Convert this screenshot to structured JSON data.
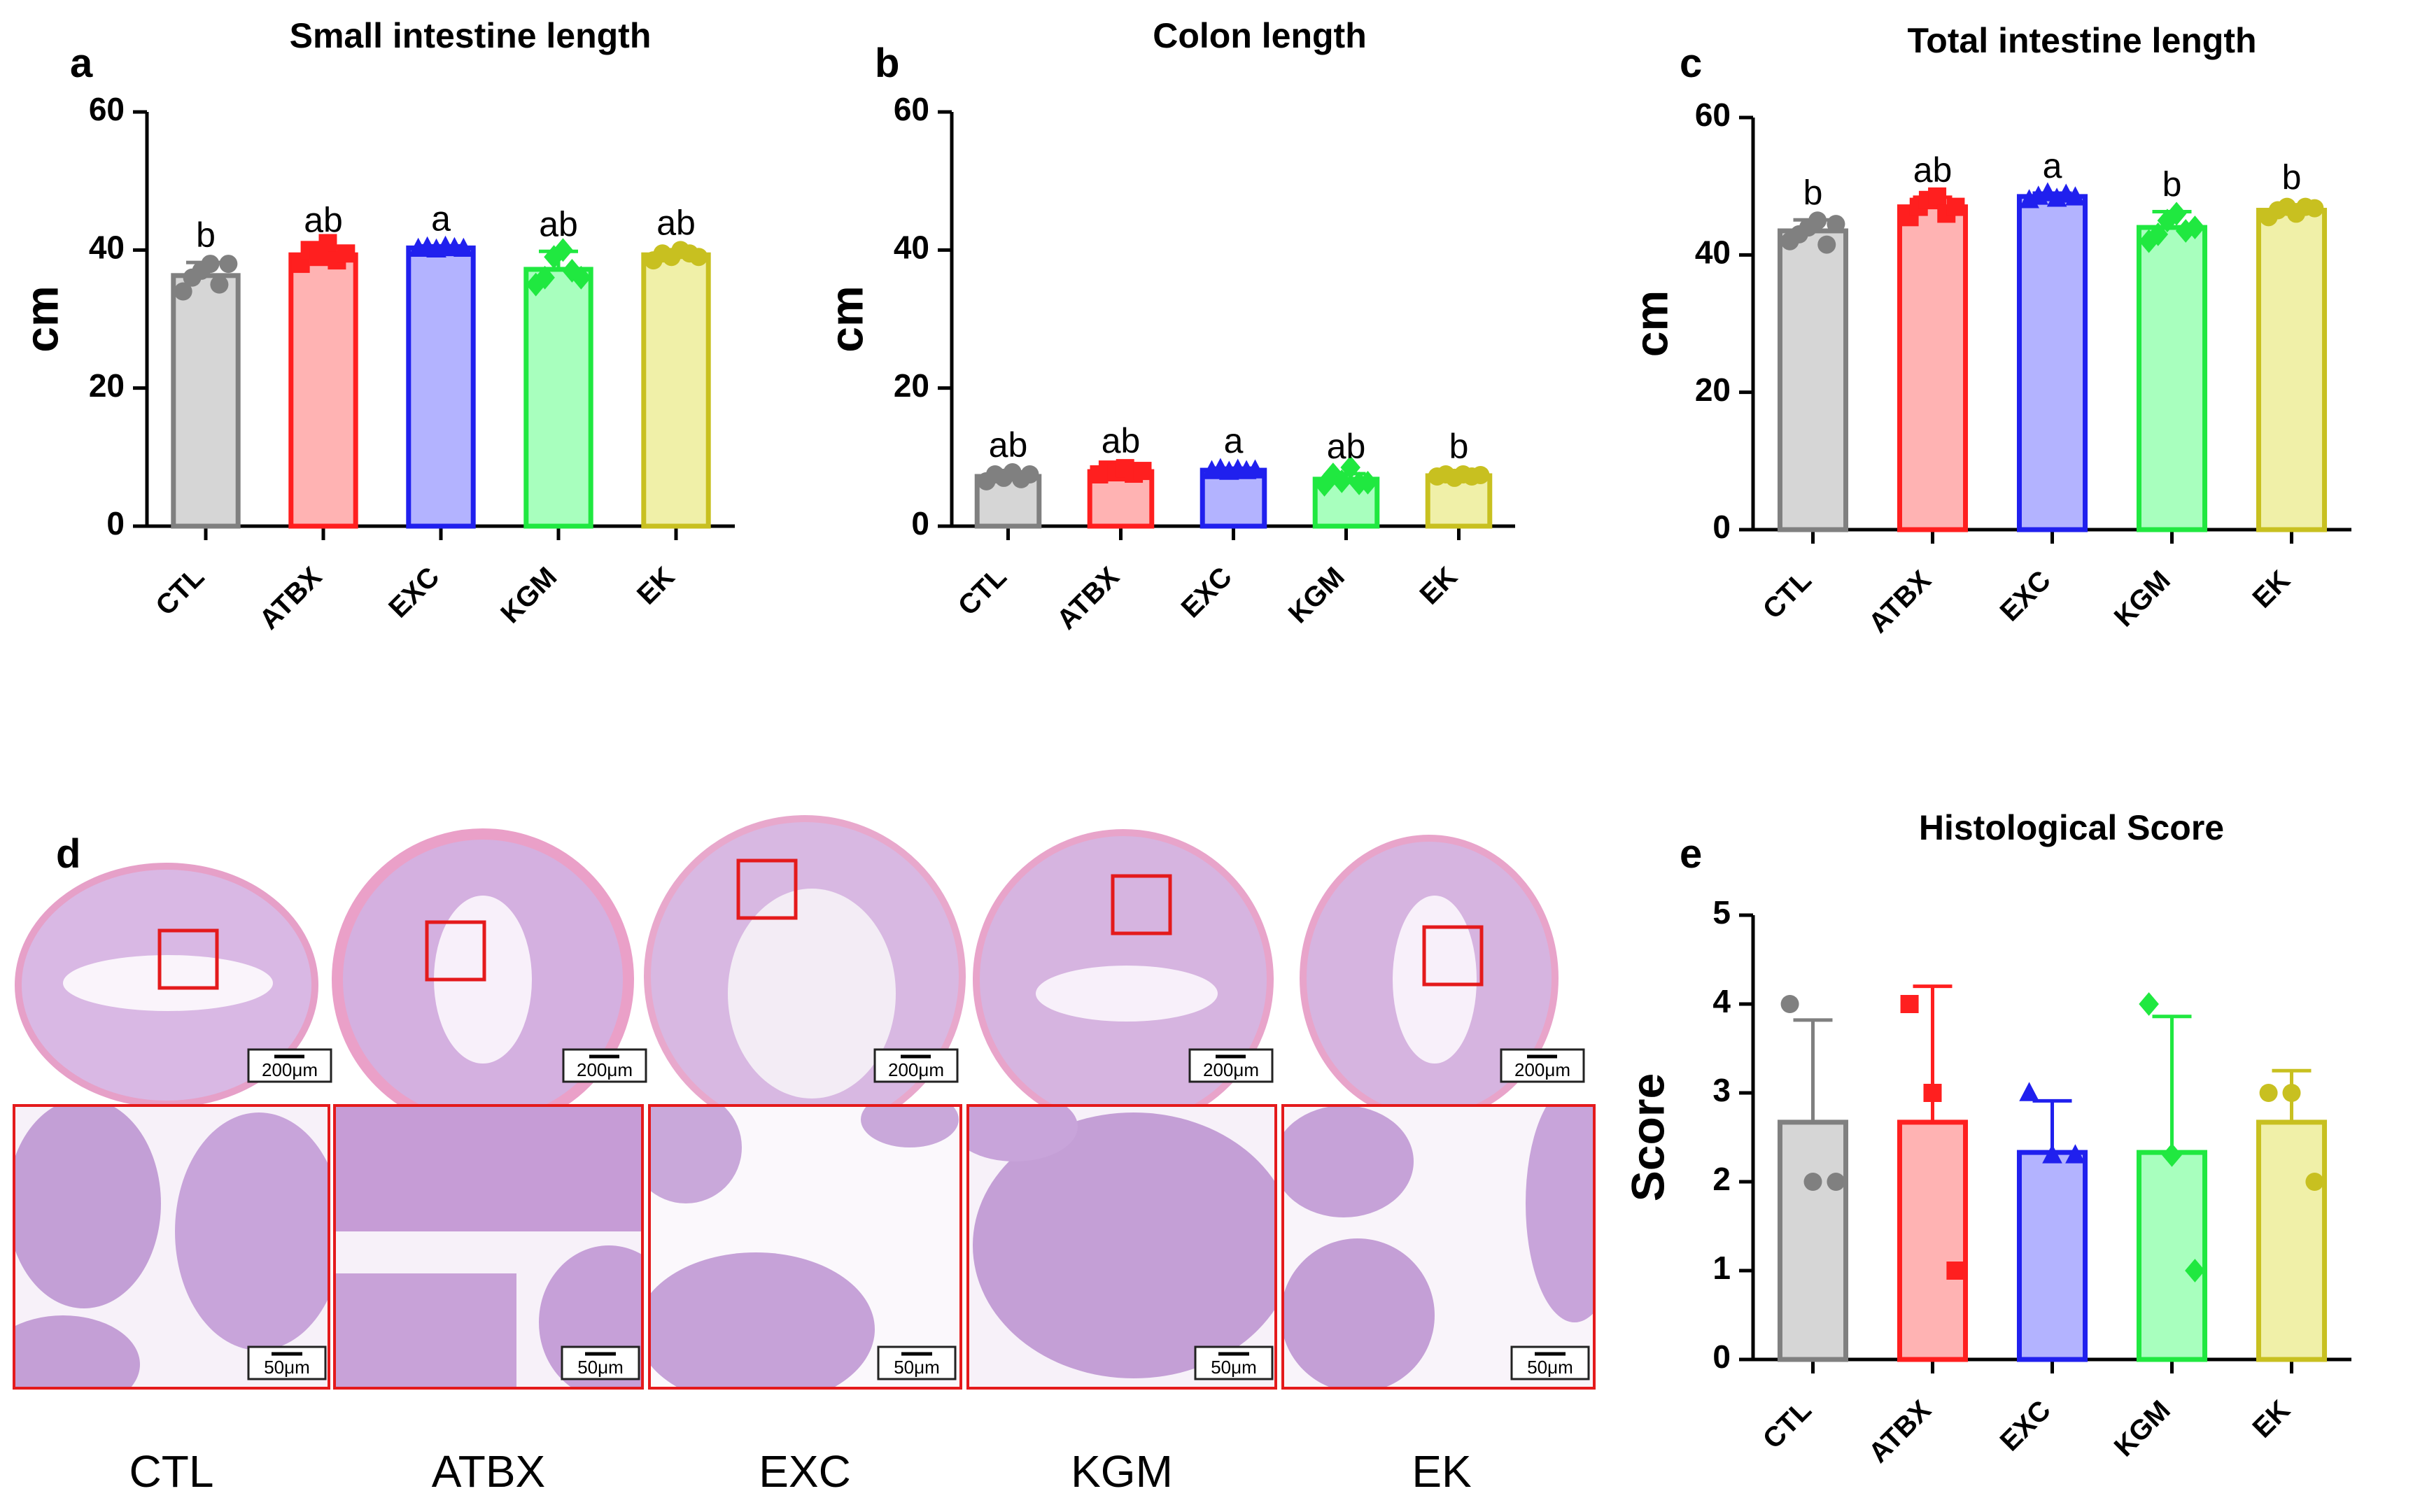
{
  "panel_labels": {
    "a": "a",
    "b": "b",
    "c": "c",
    "d": "d",
    "e": "e"
  },
  "groups": [
    "CTL",
    "ATBX",
    "EXC",
    "KGM",
    "EK"
  ],
  "colors": {
    "stroke": [
      "#808080",
      "#ff1f1f",
      "#2020ee",
      "#20e840",
      "#c8c020"
    ],
    "fill": [
      "#d6d6d6",
      "#ffb3b3",
      "#b3b3ff",
      "#a8ffbe",
      "#f0f0a8"
    ],
    "tissue": "#c9a6d8",
    "tissue_dark": "#8a5ca8",
    "roi": "#e41a1c"
  },
  "histology": {
    "bottom_labels": [
      "CTL",
      "ATBX",
      "EXC",
      "KGM",
      "EK"
    ],
    "scale_overview": "200μm",
    "scale_detail": "50μm"
  },
  "chart_data": [
    {
      "type": "bar",
      "panel": "a",
      "title": "Small intestine length",
      "ylabel": "cm",
      "ylim": [
        0,
        60
      ],
      "yticks": [
        0,
        20,
        40,
        60
      ],
      "categories": [
        "CTL",
        "ATBX",
        "EXC",
        "KGM",
        "EK"
      ],
      "values": [
        36.3,
        39.3,
        40.3,
        37.2,
        39.3
      ],
      "errors": [
        1.9,
        1.1,
        0.3,
        2.6,
        0.7
      ],
      "letters": [
        "b",
        "ab",
        "a",
        "ab",
        "ab"
      ],
      "points": [
        [
          34,
          36,
          37,
          38,
          35,
          38
        ],
        [
          38,
          40,
          39,
          41,
          38.5,
          39.5
        ],
        [
          40.2,
          40.4,
          40.1,
          40.5,
          40.3,
          40.2
        ],
        [
          35,
          36,
          39,
          40,
          37,
          36
        ],
        [
          38.5,
          39.5,
          39,
          40,
          39.5,
          39
        ]
      ]
    },
    {
      "type": "bar",
      "panel": "b",
      "title": "Colon length",
      "ylabel": "cm",
      "ylim": [
        0,
        60
      ],
      "yticks": [
        0,
        20,
        40,
        60
      ],
      "categories": [
        "CTL",
        "ATBX",
        "EXC",
        "KGM",
        "EK"
      ],
      "values": [
        7.2,
        7.9,
        8.1,
        6.8,
        7.3
      ],
      "errors": [
        0.6,
        0.5,
        0.3,
        0.8,
        0.3
      ],
      "letters": [
        "ab",
        "ab",
        "a",
        "ab",
        "b"
      ],
      "points": [
        [
          6.5,
          7.5,
          7.0,
          7.8,
          6.8,
          7.5
        ],
        [
          7.5,
          8.2,
          7.8,
          8.4,
          7.6,
          8.0
        ],
        [
          8.0,
          8.3,
          7.9,
          8.2,
          8.0,
          8.1
        ],
        [
          6.0,
          7.5,
          6.5,
          8.5,
          6.2,
          6.3
        ],
        [
          7.2,
          7.5,
          7.0,
          7.5,
          7.2,
          7.4
        ]
      ]
    },
    {
      "type": "bar",
      "panel": "c",
      "title": "Total intestine length",
      "ylabel": "cm",
      "ylim": [
        0,
        60
      ],
      "yticks": [
        0,
        20,
        40,
        60
      ],
      "categories": [
        "CTL",
        "ATBX",
        "EXC",
        "KGM",
        "EK"
      ],
      "values": [
        43.5,
        47.0,
        48.5,
        44.0,
        46.5
      ],
      "errors": [
        1.6,
        1.4,
        0.5,
        2.3,
        0.8
      ],
      "letters": [
        "b",
        "ab",
        "a",
        "b",
        "b"
      ],
      "points": [
        [
          42,
          43,
          44,
          45,
          41.5,
          44.5
        ],
        [
          45.5,
          47,
          48,
          48.5,
          46,
          47
        ],
        [
          48,
          48.5,
          49,
          48.2,
          48.8,
          48.4
        ],
        [
          42,
          43,
          45,
          46,
          43.5,
          44
        ],
        [
          45.5,
          46.5,
          47,
          46,
          47,
          46.8
        ]
      ]
    },
    {
      "type": "bar",
      "panel": "e",
      "title": "Histological Score",
      "ylabel": "Score",
      "ylim": [
        0,
        5
      ],
      "yticks": [
        0,
        1,
        2,
        3,
        4,
        5
      ],
      "categories": [
        "CTL",
        "ATBX",
        "EXC",
        "KGM",
        "EK"
      ],
      "values": [
        2.67,
        2.67,
        2.33,
        2.33,
        2.67
      ],
      "errors": [
        1.15,
        1.53,
        0.58,
        1.53,
        0.58
      ],
      "letters": [],
      "points": [
        [
          4,
          2,
          2
        ],
        [
          4,
          3,
          1
        ],
        [
          3,
          2.3,
          2.3
        ],
        [
          4,
          2.3,
          1
        ],
        [
          3,
          3,
          2
        ]
      ]
    }
  ]
}
